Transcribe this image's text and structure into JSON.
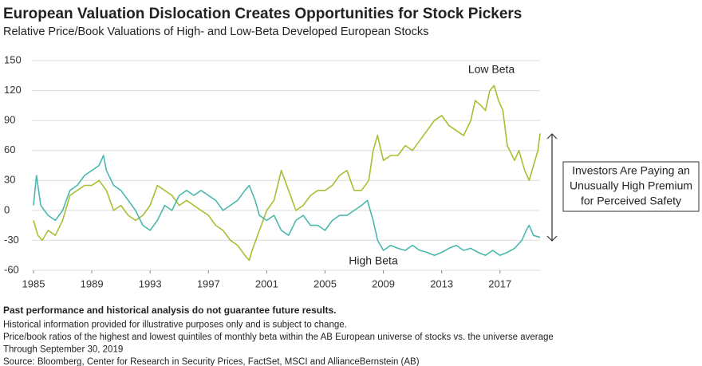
{
  "chart_data": {
    "type": "line",
    "title": "European Valuation Dislocation Creates Opportunities for Stock Pickers",
    "subtitle": "Relative Price/Book Valuations of High- and Low-Beta Developed European Stocks",
    "xlim": [
      1985,
      2019.75
    ],
    "xticks": [
      1985,
      1989,
      1993,
      1997,
      2001,
      2005,
      2009,
      2013,
      2017
    ],
    "ylim": [
      -60,
      150
    ],
    "yticks": [
      -60,
      -30,
      0,
      30,
      60,
      90,
      120,
      150
    ],
    "grid": true,
    "series": [
      {
        "name": "Low Beta",
        "color": "#a7bf32",
        "x": [
          1985,
          1985.3,
          1985.6,
          1986,
          1986.5,
          1987,
          1987.5,
          1988,
          1988.5,
          1989,
          1989.5,
          1990,
          1990.5,
          1991,
          1991.5,
          1992,
          1992.5,
          1993,
          1993.5,
          1994,
          1994.5,
          1995,
          1995.5,
          1996,
          1996.5,
          1997,
          1997.5,
          1998,
          1998.5,
          1999,
          1999.5,
          1999.8,
          2000,
          2000.5,
          2001,
          2001.5,
          2002,
          2002.5,
          2003,
          2003.5,
          2004,
          2004.5,
          2005,
          2005.5,
          2006,
          2006.5,
          2007,
          2007.5,
          2008,
          2008.3,
          2008.6,
          2009,
          2009.5,
          2010,
          2010.5,
          2011,
          2011.5,
          2012,
          2012.5,
          2013,
          2013.5,
          2014,
          2014.5,
          2015,
          2015.3,
          2015.7,
          2016,
          2016.3,
          2016.6,
          2016.9,
          2017.2,
          2017.5,
          2018,
          2018.3,
          2018.7,
          2019,
          2019.3,
          2019.6,
          2019.75
        ],
        "values": [
          -10,
          -25,
          -30,
          -20,
          -25,
          -10,
          15,
          20,
          25,
          25,
          30,
          20,
          0,
          5,
          -5,
          -10,
          -5,
          5,
          25,
          20,
          15,
          5,
          10,
          5,
          0,
          -5,
          -15,
          -20,
          -30,
          -35,
          -45,
          -50,
          -40,
          -20,
          0,
          10,
          40,
          20,
          0,
          5,
          15,
          20,
          20,
          25,
          35,
          40,
          20,
          20,
          30,
          60,
          75,
          50,
          55,
          55,
          65,
          60,
          70,
          80,
          90,
          95,
          85,
          80,
          75,
          90,
          110,
          105,
          100,
          120,
          125,
          110,
          100,
          65,
          50,
          60,
          40,
          30,
          45,
          60,
          77
        ]
      },
      {
        "name": "High Beta",
        "color": "#4cb8ad",
        "x": [
          1985,
          1985.2,
          1985.5,
          1986,
          1986.5,
          1987,
          1987.5,
          1988,
          1988.5,
          1989,
          1989.5,
          1989.8,
          1990,
          1990.5,
          1991,
          1991.5,
          1992,
          1992.5,
          1993,
          1993.5,
          1994,
          1994.5,
          1995,
          1995.5,
          1996,
          1996.5,
          1997,
          1997.5,
          1998,
          1998.5,
          1999,
          1999.5,
          1999.8,
          2000.2,
          2000.5,
          2001,
          2001.5,
          2002,
          2002.5,
          2003,
          2003.5,
          2004,
          2004.5,
          2005,
          2005.5,
          2006,
          2006.5,
          2007,
          2007.5,
          2007.9,
          2008.3,
          2008.6,
          2009,
          2009.5,
          2010,
          2010.5,
          2011,
          2011.5,
          2012,
          2012.5,
          2013,
          2013.5,
          2014,
          2014.5,
          2015,
          2015.5,
          2016,
          2016.5,
          2017,
          2017.5,
          2018,
          2018.5,
          2018.8,
          2019,
          2019.3,
          2019.75
        ],
        "values": [
          5,
          35,
          5,
          -5,
          -10,
          0,
          20,
          25,
          35,
          40,
          45,
          55,
          40,
          25,
          20,
          10,
          0,
          -15,
          -20,
          -10,
          5,
          0,
          15,
          20,
          15,
          20,
          15,
          10,
          0,
          5,
          10,
          20,
          25,
          10,
          -5,
          -10,
          -5,
          -20,
          -25,
          -10,
          -5,
          -15,
          -15,
          -20,
          -10,
          -5,
          -5,
          0,
          5,
          10,
          -10,
          -30,
          -40,
          -35,
          -38,
          -40,
          -35,
          -40,
          -42,
          -45,
          -42,
          -38,
          -35,
          -40,
          -38,
          -42,
          -45,
          -40,
          -45,
          -42,
          -38,
          -30,
          -20,
          -15,
          -25,
          -27
        ]
      }
    ],
    "annotation_lines": [
      "Investors Are Paying an",
      "Unusually High Premium",
      "for Perceived Safety"
    ],
    "notes": [
      "Past performance and historical analysis do not guarantee future results.",
      "Historical information provided for illustrative purposes only and is subject to change.",
      "Price/book ratios of the highest and lowest quintiles of monthly beta within the AB European universe of stocks vs. the universe average",
      "Through September 30, 2019",
      "Source: Bloomberg, Center for Research in Security Prices, FactSet, MSCI and AllianceBernstein (AB)"
    ]
  }
}
